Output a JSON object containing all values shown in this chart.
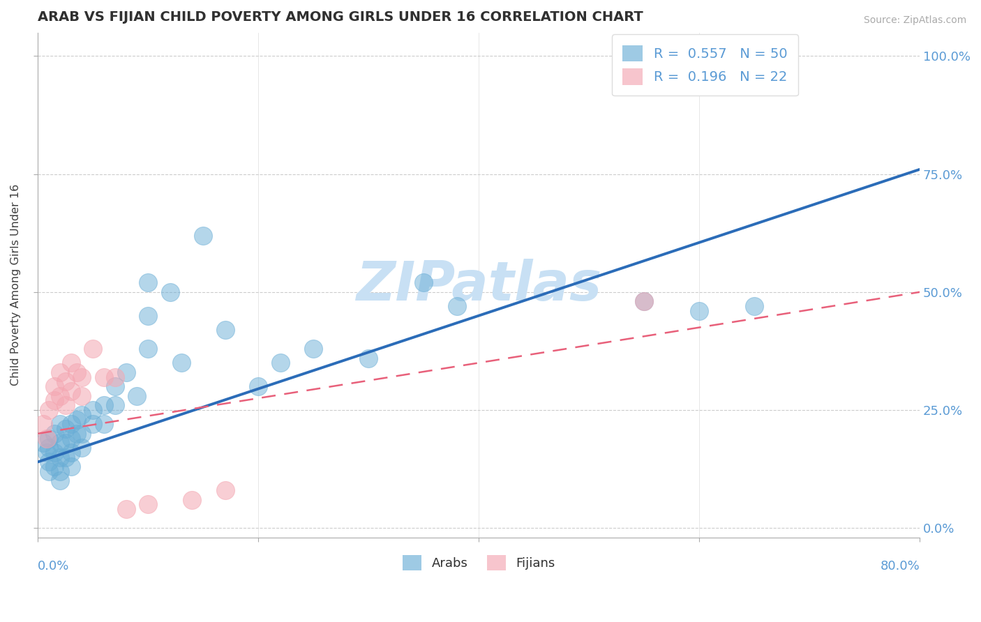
{
  "title": "ARAB VS FIJIAN CHILD POVERTY AMONG GIRLS UNDER 16 CORRELATION CHART",
  "source": "Source: ZipAtlas.com",
  "ylabel": "Child Poverty Among Girls Under 16",
  "xlim": [
    0.0,
    0.8
  ],
  "ylim": [
    -0.02,
    1.05
  ],
  "arab_R": 0.557,
  "arab_N": 50,
  "fijian_R": 0.196,
  "fijian_N": 22,
  "blue_color": "#6AAED6",
  "pink_color": "#F4A7B2",
  "blue_line_color": "#2B6CB8",
  "pink_line_color": "#E8607A",
  "title_color": "#303030",
  "axis_color": "#5B9BD5",
  "watermark_color": "#C8E0F4",
  "arab_x": [
    0.005,
    0.008,
    0.01,
    0.01,
    0.01,
    0.01,
    0.015,
    0.015,
    0.015,
    0.02,
    0.02,
    0.02,
    0.02,
    0.02,
    0.025,
    0.025,
    0.025,
    0.03,
    0.03,
    0.03,
    0.03,
    0.035,
    0.035,
    0.04,
    0.04,
    0.04,
    0.05,
    0.05,
    0.06,
    0.06,
    0.07,
    0.07,
    0.08,
    0.09,
    0.1,
    0.1,
    0.1,
    0.12,
    0.13,
    0.15,
    0.17,
    0.2,
    0.22,
    0.25,
    0.3,
    0.35,
    0.38,
    0.55,
    0.6,
    0.65
  ],
  "arab_y": [
    0.18,
    0.16,
    0.19,
    0.17,
    0.14,
    0.12,
    0.2,
    0.16,
    0.13,
    0.22,
    0.18,
    0.15,
    0.12,
    0.1,
    0.21,
    0.18,
    0.15,
    0.22,
    0.19,
    0.16,
    0.13,
    0.23,
    0.2,
    0.24,
    0.2,
    0.17,
    0.25,
    0.22,
    0.26,
    0.22,
    0.3,
    0.26,
    0.33,
    0.28,
    0.45,
    0.38,
    0.52,
    0.5,
    0.35,
    0.62,
    0.42,
    0.3,
    0.35,
    0.38,
    0.36,
    0.52,
    0.47,
    0.48,
    0.46,
    0.47
  ],
  "fijian_x": [
    0.005,
    0.008,
    0.01,
    0.015,
    0.015,
    0.02,
    0.02,
    0.025,
    0.025,
    0.03,
    0.03,
    0.035,
    0.04,
    0.04,
    0.05,
    0.06,
    0.07,
    0.08,
    0.1,
    0.14,
    0.17,
    0.55
  ],
  "fijian_y": [
    0.22,
    0.19,
    0.25,
    0.3,
    0.27,
    0.33,
    0.28,
    0.31,
    0.26,
    0.35,
    0.29,
    0.33,
    0.32,
    0.28,
    0.38,
    0.32,
    0.32,
    0.04,
    0.05,
    0.06,
    0.08,
    0.48
  ],
  "blue_line_x": [
    0.0,
    0.8
  ],
  "blue_line_y": [
    0.14,
    0.76
  ],
  "pink_line_x": [
    0.0,
    0.8
  ],
  "pink_line_y": [
    0.2,
    0.5
  ],
  "yticks": [
    0.0,
    0.25,
    0.5,
    0.75,
    1.0
  ],
  "ytick_labels": [
    "0.0%",
    "25.0%",
    "50.0%",
    "75.0%",
    "100.0%"
  ],
  "xtick_positions": [
    0.0,
    0.2,
    0.4,
    0.6,
    0.8
  ]
}
